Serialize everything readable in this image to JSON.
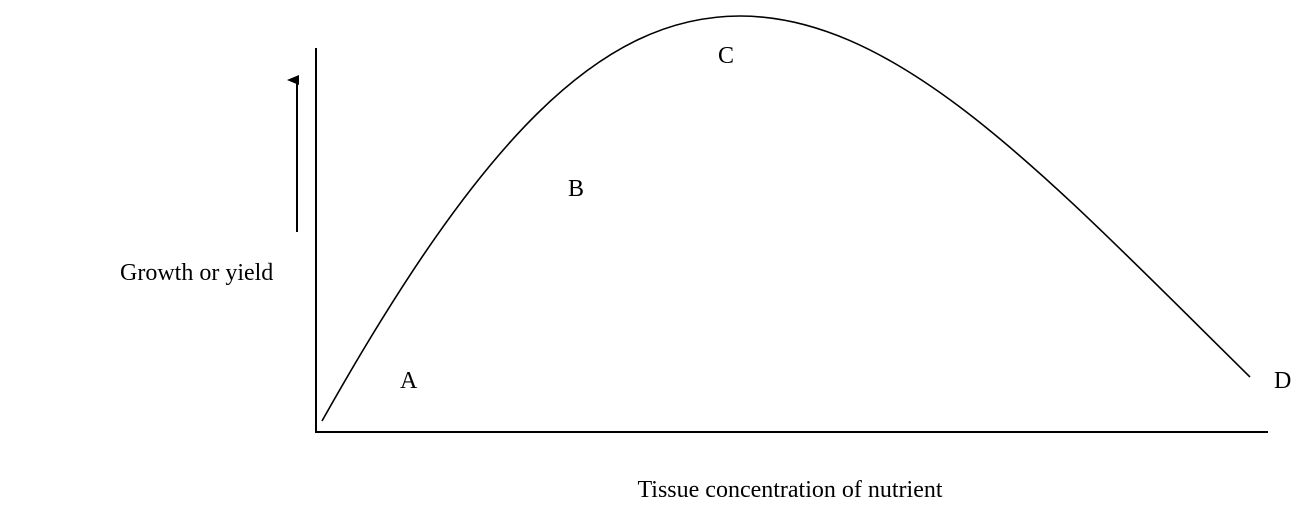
{
  "y_axis_label": "Growth or yield",
  "x_axis_label": "Tissue concentration of nutrient",
  "points": [
    {
      "label": "A"
    },
    {
      "label": "B"
    },
    {
      "label": "C"
    },
    {
      "label": "D"
    }
  ]
}
